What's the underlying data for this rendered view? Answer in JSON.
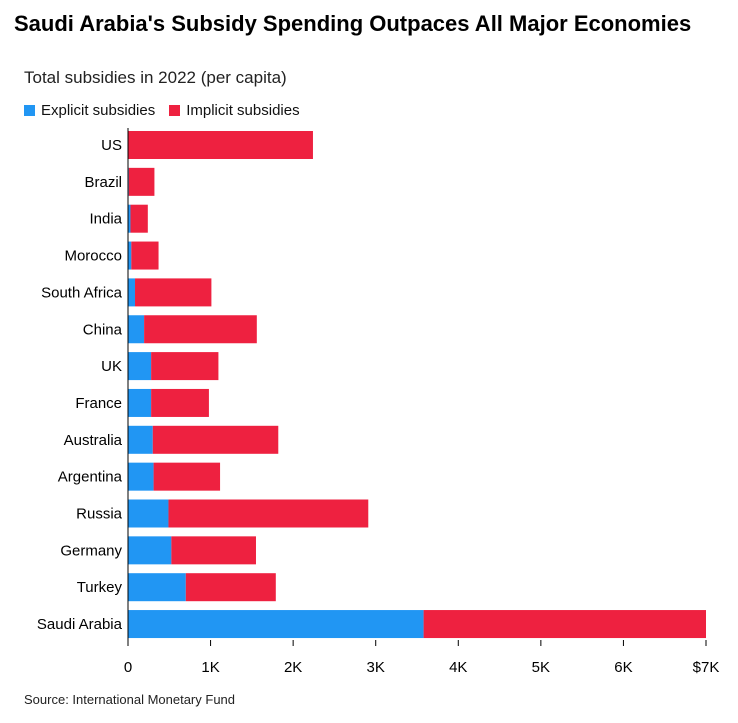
{
  "header": {
    "title": "Saudi Arabia's Subsidy Spending Outpaces All Major Economies",
    "subtitle": "Total subsidies in 2022 (per capita)"
  },
  "footer": {
    "source": "Source: International Monetary Fund"
  },
  "colors": {
    "explicit": "#2196f3",
    "implicit": "#ee2140",
    "axis": "#000000",
    "text": "#000000"
  },
  "chart_data": {
    "type": "bar",
    "orientation": "horizontal",
    "stacked": true,
    "title": "Saudi Arabia's Subsidy Spending Outpaces All Major Economies",
    "subtitle": "Total subsidies in 2022 (per capita)",
    "categories": [
      "US",
      "Brazil",
      "India",
      "Morocco",
      "South Africa",
      "China",
      "UK",
      "France",
      "Australia",
      "Argentina",
      "Russia",
      "Germany",
      "Turkey",
      "Saudi Arabia"
    ],
    "series": [
      {
        "name": "Explicit subsidies",
        "color": "#2196f3",
        "values": [
          5,
          10,
          30,
          40,
          85,
          195,
          280,
          280,
          300,
          310,
          490,
          525,
          700,
          3580
        ]
      },
      {
        "name": "Implicit subsidies",
        "color": "#ee2140",
        "values": [
          2235,
          310,
          210,
          330,
          925,
          1365,
          815,
          700,
          1520,
          805,
          2420,
          1025,
          1090,
          3420
        ]
      }
    ],
    "xlim": [
      0,
      7000
    ],
    "xticks": [
      0,
      1000,
      2000,
      3000,
      4000,
      5000,
      6000,
      7000
    ],
    "xtick_labels": [
      "0",
      "1K",
      "2K",
      "3K",
      "4K",
      "5K",
      "6K",
      "$7K"
    ],
    "xlabel": "",
    "ylabel": "",
    "grid": false,
    "legend": "top-left"
  }
}
